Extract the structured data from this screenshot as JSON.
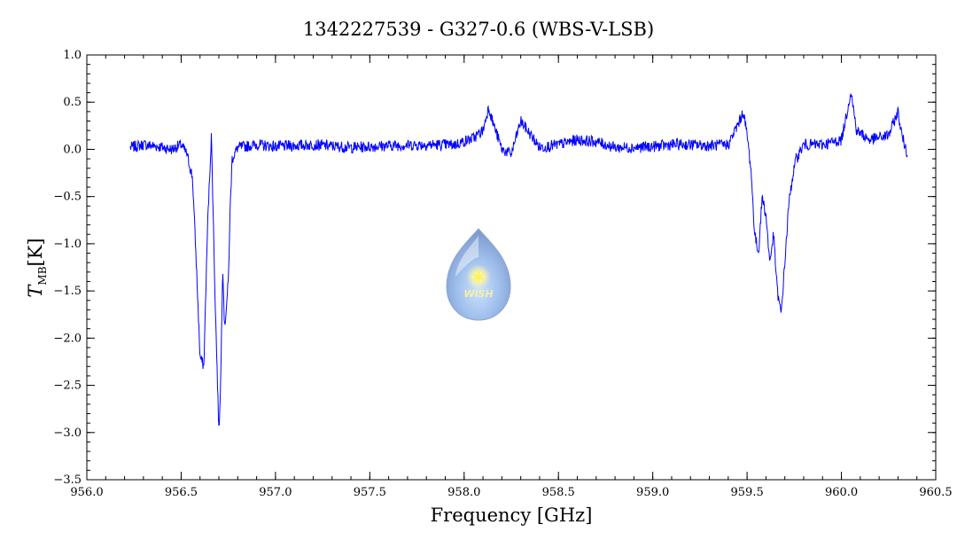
{
  "chart_data": {
    "type": "line",
    "title": "1342227539 - G327-0.6 (WBS-V-LSB)",
    "xlabel": "Frequency [GHz]",
    "ylabel_main": "T",
    "ylabel_sub": "MB",
    "ylabel_unit": "[K]",
    "xlim": [
      956.0,
      960.5
    ],
    "ylim": [
      -3.5,
      1.0
    ],
    "xticks": [
      "956.0",
      "956.5",
      "957.0",
      "957.5",
      "958.0",
      "958.5",
      "959.0",
      "959.5",
      "960.0",
      "960.5"
    ],
    "yticks": [
      "1.0",
      "0.5",
      "0.0",
      "−0.5",
      "−1.0",
      "−1.5",
      "−2.0",
      "−2.5",
      "−3.0",
      "−3.5"
    ],
    "grid": false,
    "series": [
      {
        "color": "#0000ff",
        "x": [
          956.23,
          956.3,
          956.38,
          956.45,
          956.5,
          956.53,
          956.56,
          956.58,
          956.6,
          956.62,
          956.64,
          956.66,
          956.68,
          956.7,
          956.71,
          956.72,
          956.73,
          956.75,
          956.76,
          956.77,
          956.8,
          956.9,
          957.0,
          957.2,
          957.4,
          957.6,
          957.8,
          957.95,
          958.05,
          958.1,
          958.13,
          958.15,
          958.2,
          958.25,
          958.3,
          958.4,
          958.5,
          958.6,
          958.7,
          958.8,
          958.9,
          959.0,
          959.1,
          959.2,
          959.3,
          959.4,
          959.46,
          959.48,
          959.5,
          959.52,
          959.54,
          959.56,
          959.58,
          959.6,
          959.62,
          959.64,
          959.66,
          959.68,
          959.7,
          959.72,
          959.74,
          959.76,
          959.8,
          959.9,
          960.0,
          960.03,
          960.05,
          960.08,
          960.15,
          960.25,
          960.3,
          960.32,
          960.35
        ],
        "y": [
          0.02,
          0.05,
          0.03,
          0.0,
          0.05,
          -0.05,
          -0.3,
          -1.2,
          -2.2,
          -2.3,
          -0.8,
          0.15,
          -1.6,
          -3.0,
          -2.4,
          -1.2,
          -1.9,
          -1.4,
          -0.6,
          -0.1,
          0.02,
          0.05,
          0.03,
          0.05,
          0.02,
          0.04,
          0.05,
          0.05,
          0.12,
          0.2,
          0.45,
          0.3,
          0.0,
          -0.05,
          0.3,
          0.02,
          0.05,
          0.1,
          0.08,
          0.02,
          0.02,
          0.03,
          0.05,
          0.05,
          0.04,
          0.05,
          0.3,
          0.4,
          0.15,
          -0.2,
          -0.9,
          -1.1,
          -0.5,
          -0.7,
          -1.2,
          -0.9,
          -1.5,
          -1.75,
          -1.2,
          -0.6,
          -0.3,
          -0.1,
          0.05,
          0.05,
          0.1,
          0.4,
          0.62,
          0.2,
          0.1,
          0.15,
          0.4,
          0.15,
          -0.05
        ]
      }
    ]
  },
  "logo": {
    "text": "WISH"
  }
}
